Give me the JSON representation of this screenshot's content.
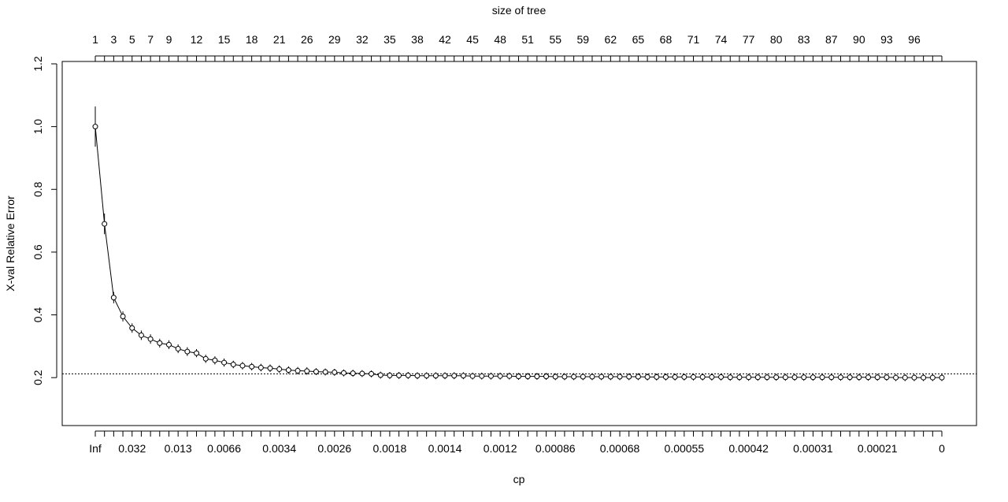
{
  "chart_data": {
    "type": "line",
    "top_axis_title": "size of tree",
    "xlabel": "cp",
    "ylabel": "X-val Relative Error",
    "ylim": [
      0.1,
      1.2
    ],
    "yticks": [
      {
        "value": 0.2,
        "label": "0.2"
      },
      {
        "value": 0.4,
        "label": "0.4"
      },
      {
        "value": 0.6,
        "label": "0.6"
      },
      {
        "value": 0.8,
        "label": "0.8"
      },
      {
        "value": 1.0,
        "label": "1.0"
      },
      {
        "value": 1.2,
        "label": "1.2"
      }
    ],
    "num_splits": 93,
    "top_tick_labels": [
      {
        "index": 0,
        "label": "1"
      },
      {
        "index": 2,
        "label": "3"
      },
      {
        "index": 4,
        "label": "5"
      },
      {
        "index": 6,
        "label": "7"
      },
      {
        "index": 8,
        "label": "9"
      },
      {
        "index": 11,
        "label": "12"
      },
      {
        "index": 14,
        "label": "15"
      },
      {
        "index": 17,
        "label": "18"
      },
      {
        "index": 20,
        "label": "21"
      },
      {
        "index": 23,
        "label": "26"
      },
      {
        "index": 26,
        "label": "29"
      },
      {
        "index": 29,
        "label": "32"
      },
      {
        "index": 32,
        "label": "35"
      },
      {
        "index": 35,
        "label": "38"
      },
      {
        "index": 38,
        "label": "42"
      },
      {
        "index": 41,
        "label": "45"
      },
      {
        "index": 44,
        "label": "48"
      },
      {
        "index": 47,
        "label": "51"
      },
      {
        "index": 50,
        "label": "55"
      },
      {
        "index": 53,
        "label": "59"
      },
      {
        "index": 56,
        "label": "62"
      },
      {
        "index": 59,
        "label": "65"
      },
      {
        "index": 62,
        "label": "68"
      },
      {
        "index": 65,
        "label": "71"
      },
      {
        "index": 68,
        "label": "74"
      },
      {
        "index": 71,
        "label": "77"
      },
      {
        "index": 74,
        "label": "80"
      },
      {
        "index": 77,
        "label": "83"
      },
      {
        "index": 80,
        "label": "87"
      },
      {
        "index": 83,
        "label": "90"
      },
      {
        "index": 86,
        "label": "93"
      },
      {
        "index": 89,
        "label": "96"
      }
    ],
    "bottom_tick_labels": [
      {
        "index": 0,
        "label": "Inf"
      },
      {
        "index": 4,
        "label": "0.032"
      },
      {
        "index": 9,
        "label": "0.013"
      },
      {
        "index": 14,
        "label": "0.0066"
      },
      {
        "index": 20,
        "label": "0.0034"
      },
      {
        "index": 26,
        "label": "0.0026"
      },
      {
        "index": 32,
        "label": "0.0018"
      },
      {
        "index": 38,
        "label": "0.0014"
      },
      {
        "index": 44,
        "label": "0.0012"
      },
      {
        "index": 50,
        "label": "0.00086"
      },
      {
        "index": 57,
        "label": "0.00068"
      },
      {
        "index": 64,
        "label": "0.00055"
      },
      {
        "index": 71,
        "label": "0.00042"
      },
      {
        "index": 78,
        "label": "0.00031"
      },
      {
        "index": 85,
        "label": "0.00021"
      },
      {
        "index": 92,
        "label": "0"
      }
    ],
    "series": [
      {
        "values": [
          1.0,
          0.69,
          0.455,
          0.395,
          0.358,
          0.335,
          0.323,
          0.31,
          0.305,
          0.292,
          0.283,
          0.278,
          0.26,
          0.255,
          0.248,
          0.242,
          0.238,
          0.235,
          0.232,
          0.23,
          0.227,
          0.224,
          0.222,
          0.221,
          0.219,
          0.218,
          0.217,
          0.215,
          0.214,
          0.213,
          0.212,
          0.208,
          0.207,
          0.207,
          0.207,
          0.206,
          0.206,
          0.206,
          0.206,
          0.206,
          0.206,
          0.205,
          0.205,
          0.205,
          0.205,
          0.205,
          0.204,
          0.204,
          0.204,
          0.204,
          0.203,
          0.203,
          0.203,
          0.203,
          0.203,
          0.203,
          0.203,
          0.203,
          0.203,
          0.203,
          0.202,
          0.202,
          0.202,
          0.202,
          0.202,
          0.202,
          0.202,
          0.202,
          0.202,
          0.201,
          0.201,
          0.201,
          0.201,
          0.201,
          0.201,
          0.201,
          0.201,
          0.201,
          0.201,
          0.201,
          0.201,
          0.201,
          0.201,
          0.201,
          0.201,
          0.201,
          0.201,
          0.2,
          0.2,
          0.2,
          0.2,
          0.2,
          0.2
        ],
        "errors": [
          0.064,
          0.033,
          0.018,
          0.016,
          0.015,
          0.015,
          0.015,
          0.014,
          0.014,
          0.014,
          0.014,
          0.013,
          0.013,
          0.013,
          0.013,
          0.012,
          0.012,
          0.012,
          0.012,
          0.012,
          0.012,
          0.012,
          0.012,
          0.012,
          0.011,
          0.011,
          0.011,
          0.011,
          0.011,
          0.011,
          0.011,
          0.011,
          0.011,
          0.011,
          0.011,
          0.011,
          0.011,
          0.011,
          0.011,
          0.011,
          0.011,
          0.011,
          0.011,
          0.011,
          0.011,
          0.011,
          0.011,
          0.011,
          0.011,
          0.011,
          0.011,
          0.011,
          0.011,
          0.011,
          0.011,
          0.011,
          0.011,
          0.011,
          0.011,
          0.011,
          0.011,
          0.011,
          0.011,
          0.011,
          0.011,
          0.011,
          0.011,
          0.011,
          0.011,
          0.011,
          0.011,
          0.011,
          0.011,
          0.011,
          0.011,
          0.011,
          0.011,
          0.011,
          0.011,
          0.011,
          0.011,
          0.011,
          0.011,
          0.011,
          0.011,
          0.011,
          0.011,
          0.011,
          0.011,
          0.011,
          0.011,
          0.011,
          0.011
        ]
      }
    ],
    "reference_line": {
      "value": 0.212,
      "style": "dotted"
    },
    "grid": false,
    "legend": "none"
  }
}
